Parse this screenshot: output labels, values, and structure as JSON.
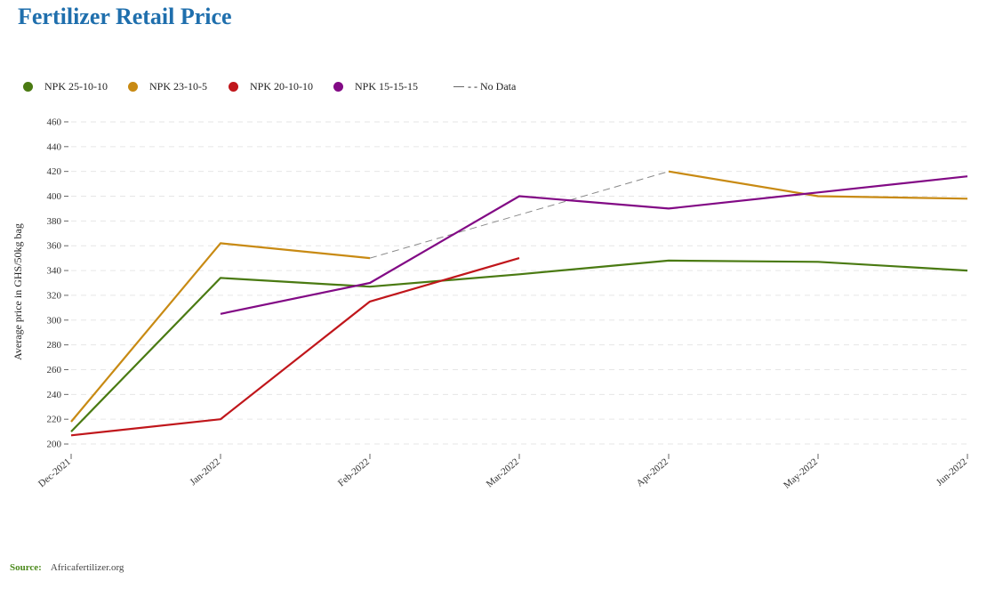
{
  "page": {
    "title": "Fertilizer Retail Price"
  },
  "source": {
    "label": "Source:",
    "text": "Africafertilizer.org"
  },
  "legend": [
    {
      "label": "NPK 25-10-10",
      "color": "#4a7a12",
      "kind": "dot"
    },
    {
      "label": "NPK 23-10-5",
      "color": "#c88a13",
      "kind": "dot"
    },
    {
      "label": "NPK 20-10-10",
      "color": "#c0161b",
      "kind": "dot"
    },
    {
      "label": "NPK 15-15-15",
      "color": "#820a85",
      "kind": "dot"
    },
    {
      "label": "- - No Data",
      "color": "#888888",
      "kind": "dash"
    }
  ],
  "chart_data": {
    "type": "line",
    "title": "Fertilizer Retail Price",
    "xlabel": "",
    "ylabel": "Average price in GHS/50kg bag",
    "categories": [
      "Dec-2021",
      "Jan-2022",
      "Feb-2022",
      "Mar-2022",
      "Apr-2022",
      "May-2022",
      "Jun-2022"
    ],
    "ylim": [
      195,
      465
    ],
    "yticks": [
      200,
      220,
      240,
      260,
      280,
      300,
      320,
      340,
      360,
      380,
      400,
      420,
      440,
      460
    ],
    "grid": "horizontal-dashed",
    "legend_position": "top",
    "series": [
      {
        "name": "NPK 25-10-10",
        "color": "#4a7a12",
        "values": [
          210,
          334,
          327,
          337,
          348,
          347,
          340
        ]
      },
      {
        "name": "NPK 23-10-5",
        "color": "#c88a13",
        "values": [
          218,
          362,
          350,
          null,
          420,
          400,
          398
        ]
      },
      {
        "name": "NPK 20-10-10",
        "color": "#c0161b",
        "values": [
          207,
          220,
          315,
          350,
          null,
          null,
          null
        ]
      },
      {
        "name": "NPK 15-15-15",
        "color": "#820a85",
        "values": [
          null,
          305,
          330,
          400,
          390,
          403,
          416
        ]
      }
    ],
    "no_data_segments": [
      {
        "series": "NPK 23-10-5",
        "color": "#888888",
        "from": "Feb-2022",
        "to": "Apr-2022",
        "values": [
          350,
          420
        ]
      }
    ]
  }
}
